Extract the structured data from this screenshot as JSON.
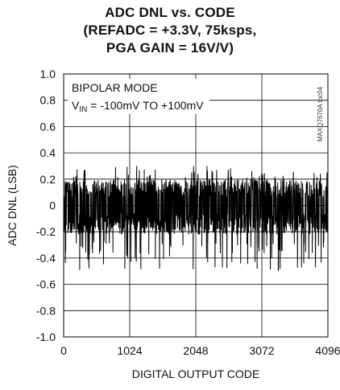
{
  "chart_data": {
    "type": "line",
    "title": [
      "ADC DNL vs. CODE",
      "(REFADC = +3.3V, 75ksps,",
      "PGA GAIN = 16V/V)"
    ],
    "xlabel": "DIGITAL OUTPUT CODE",
    "ylabel": "ADC DNL (LSB)",
    "xlim": [
      0,
      4096
    ],
    "ylim": [
      -1.0,
      1.0
    ],
    "x_ticks": [
      0,
      1024,
      2048,
      3072,
      4096
    ],
    "x_tick_labels": [
      "0",
      "1024",
      "2048",
      "3072",
      "4096"
    ],
    "y_ticks": [
      1.0,
      0.8,
      0.6,
      0.4,
      0.2,
      0,
      -0.2,
      -0.4,
      -0.6,
      -0.8,
      -1.0
    ],
    "y_tick_labels": [
      "1.0",
      "0.8",
      "0.6",
      "0.4",
      "0.2",
      "0",
      "-0.2",
      "-0.4",
      "-0.6",
      "-0.8",
      "-1.0"
    ],
    "grid": true,
    "annotations": {
      "mode": "BIPOLAR MODE",
      "vin_main": "V",
      "vin_sub": "IN",
      "vin_rest": " = -100mV TO +100mV"
    },
    "watermark": "MAXQ7670A toc04",
    "series": [
      {
        "name": "",
        "color": "#000000",
        "envelope_upper_typical": 0.2,
        "envelope_lower_typical": -0.2,
        "max": 0.3,
        "min": -0.5
      }
    ]
  }
}
